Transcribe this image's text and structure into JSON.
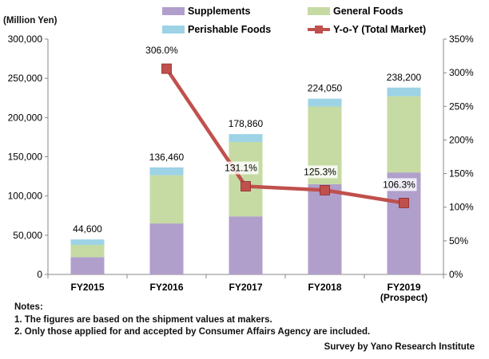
{
  "chart_data": {
    "type": "bar",
    "stacked": true,
    "y_unit_label": "(Million Yen)",
    "categories": [
      [
        "FY2015"
      ],
      [
        "FY2016"
      ],
      [
        "FY2017"
      ],
      [
        "FY2018"
      ],
      [
        "FY2019",
        "(Prospect)"
      ]
    ],
    "series": [
      {
        "name": "Supplements",
        "color": "#b09fcb",
        "values": [
          22000,
          65000,
          74000,
          115000,
          130000
        ]
      },
      {
        "name": "General Foods",
        "color": "#c5dba3",
        "values": [
          15600,
          61460,
          94860,
          99050,
          97200
        ]
      },
      {
        "name": "Perishable Foods",
        "color": "#9dd3e5",
        "values": [
          7000,
          10000,
          10000,
          10000,
          11000
        ]
      }
    ],
    "totals": [
      "44,600",
      "136,460",
      "178,860",
      "224,050",
      "238,200"
    ],
    "line_series": {
      "name": "Y-o-Y (Total Market)",
      "color": "#c0504d",
      "x": [
        "FY2016",
        "FY2017",
        "FY2018",
        "FY2019"
      ],
      "values": [
        306.0,
        131.1,
        125.3,
        106.3
      ],
      "labels": [
        "306.0%",
        "131.1%",
        "125.3%",
        "106.3%"
      ]
    },
    "y_left": {
      "range": [
        0,
        300000
      ],
      "ticks": [
        0,
        50000,
        100000,
        150000,
        200000,
        250000,
        300000
      ],
      "tick_labels": [
        "0",
        "50,000",
        "100,000",
        "150,000",
        "200,000",
        "250,000",
        "300,000"
      ]
    },
    "y_right": {
      "range": [
        0,
        350
      ],
      "ticks": [
        0,
        50,
        100,
        150,
        200,
        250,
        300,
        350
      ],
      "tick_labels": [
        "0%",
        "50%",
        "100%",
        "150%",
        "200%",
        "250%",
        "300%",
        "350%"
      ]
    },
    "grid": false,
    "legend_position": "top"
  },
  "notes": {
    "heading": "Notes:",
    "items": [
      "1. The figures are based on the shipment values at makers.",
      "2. Only those applied for and accepted by Consumer Affairs Agency are included."
    ]
  },
  "source": "Survey by Yano Research Institute"
}
